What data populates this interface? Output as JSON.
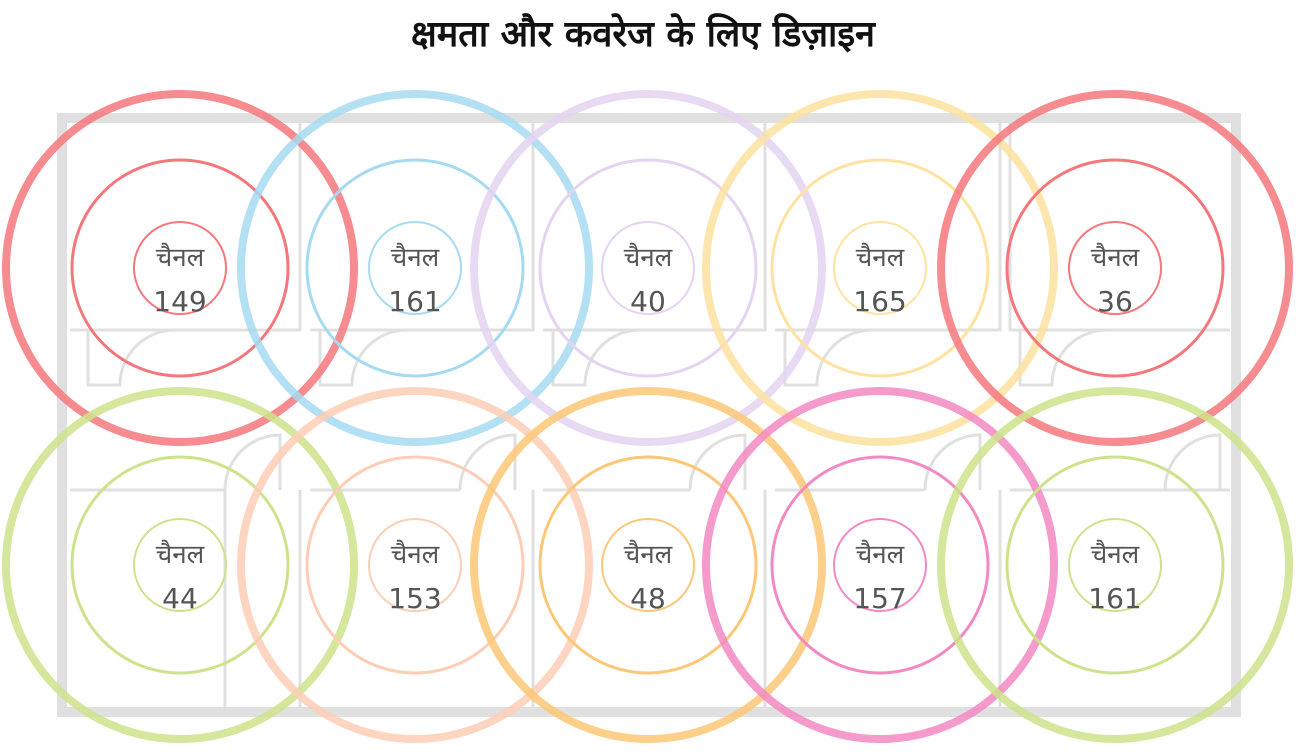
{
  "title": "क्षमता और कवरेज के लिए डिज़ाइन",
  "nodes": [
    {
      "label": "चैनल",
      "channel": 149,
      "color": "#f4777c"
    },
    {
      "label": "चैनल",
      "channel": 161,
      "color": "#a6daf1"
    },
    {
      "label": "चैनल",
      "channel": 40,
      "color": "#e5d3f2"
    },
    {
      "label": "चैनल",
      "channel": 165,
      "color": "#fde2a0"
    },
    {
      "label": "चैनल",
      "channel": 36,
      "color": "#f4777c"
    },
    {
      "label": "चैनल",
      "channel": 44,
      "color": "#cde38b"
    },
    {
      "label": "चैनल",
      "channel": 153,
      "color": "#fdceb5"
    },
    {
      "label": "चैनल",
      "channel": 48,
      "color": "#fcc776"
    },
    {
      "label": "चैनल",
      "channel": 157,
      "color": "#f289c3"
    },
    {
      "label": "चैनल",
      "channel": 161,
      "color": "#cde38b"
    }
  ]
}
